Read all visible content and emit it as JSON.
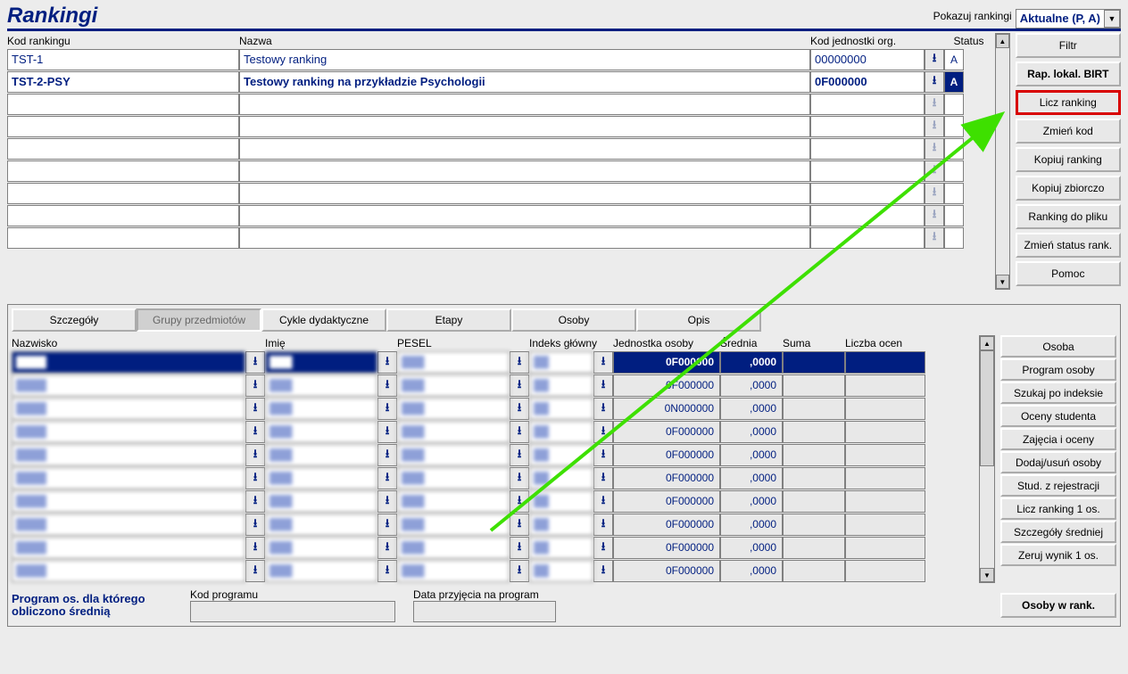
{
  "title": "Rankingi",
  "show_rankings_label": "Pokazuj rankingi",
  "show_options_selected": "Aktualne (P, A)",
  "upper": {
    "headers": {
      "kod": "Kod rankingu",
      "nazwa": "Nazwa",
      "jed": "Kod jednostki org.",
      "status": "Status"
    },
    "rows": [
      {
        "kod": "TST-1",
        "nazwa": "Testowy ranking",
        "jed": "00000000",
        "status": "A",
        "bold": false,
        "selected": false
      },
      {
        "kod": "TST-2-PSY",
        "nazwa": "Testowy ranking na przykładzie Psychologii",
        "jed": "0F000000",
        "status": "A",
        "bold": true,
        "selected": true
      },
      {
        "kod": "",
        "nazwa": "",
        "jed": "",
        "status": "",
        "bold": false,
        "selected": false
      },
      {
        "kod": "",
        "nazwa": "",
        "jed": "",
        "status": "",
        "bold": false,
        "selected": false
      },
      {
        "kod": "",
        "nazwa": "",
        "jed": "",
        "status": "",
        "bold": false,
        "selected": false
      },
      {
        "kod": "",
        "nazwa": "",
        "jed": "",
        "status": "",
        "bold": false,
        "selected": false
      },
      {
        "kod": "",
        "nazwa": "",
        "jed": "",
        "status": "",
        "bold": false,
        "selected": false
      },
      {
        "kod": "",
        "nazwa": "",
        "jed": "",
        "status": "",
        "bold": false,
        "selected": false
      },
      {
        "kod": "",
        "nazwa": "",
        "jed": "",
        "status": "",
        "bold": false,
        "selected": false
      }
    ]
  },
  "side_buttons_top": [
    {
      "label": "Filtr",
      "bold": false,
      "hl": false
    },
    {
      "label": "Rap. lokal. BIRT",
      "bold": true,
      "hl": false
    },
    {
      "label": "Licz ranking",
      "bold": false,
      "hl": true
    },
    {
      "label": "Zmień kod",
      "bold": false,
      "hl": false
    },
    {
      "label": "Kopiuj ranking",
      "bold": false,
      "hl": false
    },
    {
      "label": "Kopiuj zbiorczo",
      "bold": false,
      "hl": false
    },
    {
      "label": "Ranking do pliku",
      "bold": false,
      "hl": false
    },
    {
      "label": "Zmień status rank.",
      "bold": false,
      "hl": false
    },
    {
      "label": "Pomoc",
      "bold": false,
      "hl": false
    }
  ],
  "tabs": [
    {
      "label": "Szczegóły",
      "active": false
    },
    {
      "label": "Grupy przedmiotów",
      "active": true
    },
    {
      "label": "Cykle dydaktyczne",
      "active": false
    },
    {
      "label": "Etapy",
      "active": false
    },
    {
      "label": "Osoby",
      "active": false
    },
    {
      "label": "Opis",
      "active": false
    }
  ],
  "lower": {
    "headers": {
      "naz": "Nazwisko",
      "imie": "Imię",
      "pesel": "PESEL",
      "idx": "Indeks główny",
      "jed": "Jednostka osoby",
      "sr": "Średnia",
      "sum": "Suma",
      "lic": "Liczba ocen"
    },
    "rows": [
      {
        "jed": "0F000000",
        "sr": ",0000",
        "sel": true
      },
      {
        "jed": "0F000000",
        "sr": ",0000",
        "sel": false
      },
      {
        "jed": "0N000000",
        "sr": ",0000",
        "sel": false
      },
      {
        "jed": "0F000000",
        "sr": ",0000",
        "sel": false
      },
      {
        "jed": "0F000000",
        "sr": ",0000",
        "sel": false
      },
      {
        "jed": "0F000000",
        "sr": ",0000",
        "sel": false
      },
      {
        "jed": "0F000000",
        "sr": ",0000",
        "sel": false
      },
      {
        "jed": "0F000000",
        "sr": ",0000",
        "sel": false
      },
      {
        "jed": "0F000000",
        "sr": ",0000",
        "sel": false
      },
      {
        "jed": "0F000000",
        "sr": ",0000",
        "sel": false
      }
    ]
  },
  "side_buttons_bottom": [
    "Osoba",
    "Program osoby",
    "Szukaj po indeksie",
    "Oceny studenta",
    "Zajęcia i oceny",
    "Dodaj/usuń osoby",
    "Stud. z rejestracji",
    "Licz ranking 1 os.",
    "Szczegóły średniej",
    "Zeruj wynik 1 os."
  ],
  "footer": {
    "program_label": "Program os. dla którego obliczono średnią",
    "kod_label": "Kod programu",
    "data_label": "Data przyjęcia na program",
    "osoby_btn": "Osoby w rank."
  }
}
